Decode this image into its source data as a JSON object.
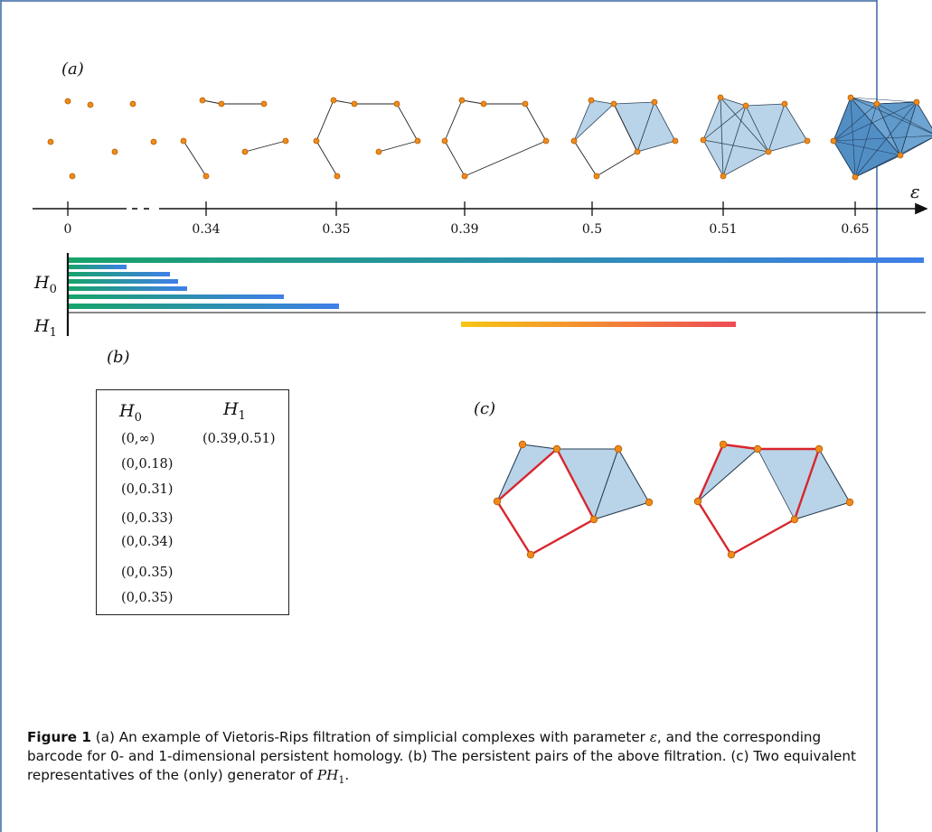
{
  "panels": {
    "a": "(a)",
    "b": "(b)",
    "c": "(c)"
  },
  "axis": {
    "symbol": "ε",
    "ticks": [
      "0",
      "0.34",
      "0.35",
      "0.39",
      "0.5",
      "0.51",
      "0.65"
    ]
  },
  "barcode": {
    "h0_label": "H",
    "h0_sub": "0",
    "h1_label": "H",
    "h1_sub": "1"
  },
  "table": {
    "h0_header": "H",
    "h0_header_sub": "0",
    "h1_header": "H",
    "h1_header_sub": "1",
    "h0_pairs": [
      "(0,∞)",
      "(0,0.18)",
      "(0,0.31)",
      "(0,0.33)",
      "(0,0.34)",
      "(0,0.35)",
      "(0,0.35)"
    ],
    "h1_pairs": [
      "(0.39,0.51)"
    ]
  },
  "caption": {
    "figure": "Figure 1",
    "line1": "(a) An example of Vietoris-Rips filtration of simplicial complexes with parameter ",
    "eps": "ε",
    "line1b": ", and the corresponding barcode for 0- and 1-dimensional persistent homology. (b) The persistent pairs of the above filtration. (c) Two equivalent representatives of the (only) generator of ",
    "ph": "PH",
    "ph_sub": "1",
    "end": "."
  },
  "colors": {
    "point": "#f08a1c",
    "point_stroke": "#b35e00",
    "simplex": "#b9d4e8",
    "simplex_dark": "#4f8fc4",
    "generator": "#d8262e",
    "bar_start": "#1aa66c",
    "bar_end": "#3f7fe8",
    "h1_start": "#f7c613",
    "h1_end": "#ee4b56"
  }
}
